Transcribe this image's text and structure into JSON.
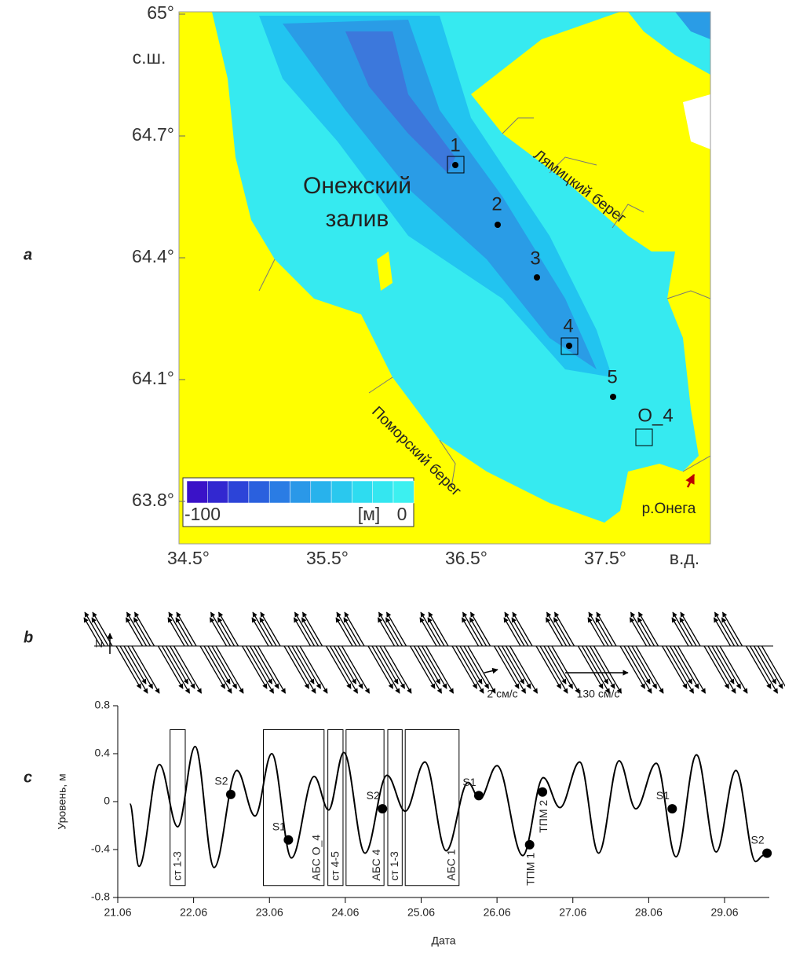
{
  "panel_labels": [
    "a",
    "b",
    "c"
  ],
  "map": {
    "lat_ticks": [
      "65°",
      "64.7°",
      "64.4°",
      "64.1°",
      "63.8°"
    ],
    "lat_unit": "с.ш.",
    "lon_ticks": [
      "34.5°",
      "35.5°",
      "36.5°",
      "37.5°"
    ],
    "lon_unit": "в.д.",
    "gulf_name": [
      "Онежский",
      "залив"
    ],
    "coasts": [
      "Лямицкий берег",
      "Поморский берег"
    ],
    "river": "р.Онега",
    "stations": [
      "1",
      "2",
      "3",
      "4",
      "5",
      "О_4"
    ],
    "colorbar": {
      "min_label": "-100",
      "unit": "[м]",
      "max_label": "0"
    }
  },
  "vectors": {
    "north": "N",
    "scales": [
      "2 см/с",
      "130 см/с"
    ]
  },
  "chart_data": {
    "type": "line",
    "x_label": "Дата",
    "y_label": "Уровень, м",
    "color": "#000000",
    "x": [
      21.16,
      21.28,
      21.55,
      21.79,
      22.02,
      22.27,
      22.57,
      22.81,
      23.03,
      23.29,
      23.59,
      23.78,
      23.98,
      24.26,
      24.55,
      24.79,
      25.05,
      25.33,
      25.62,
      25.77,
      26.0,
      26.34,
      26.61,
      26.83,
      27.09,
      27.34,
      27.61,
      27.83,
      28.1,
      28.36,
      28.63,
      28.89,
      29.15,
      29.41,
      29.51
    ],
    "values": [
      -0.02,
      -0.54,
      0.31,
      -0.21,
      0.46,
      -0.55,
      0.26,
      -0.12,
      0.4,
      -0.47,
      0.21,
      -0.07,
      0.41,
      -0.43,
      0.22,
      -0.08,
      0.33,
      -0.41,
      0.16,
      0.02,
      0.3,
      -0.45,
      0.2,
      -0.05,
      0.33,
      -0.43,
      0.34,
      -0.06,
      0.32,
      -0.46,
      0.39,
      -0.42,
      0.26,
      -0.5,
      -0.45
    ],
    "xlim": [
      21,
      29.59
    ],
    "ylim": [
      -0.8,
      0.8
    ],
    "xticks": [
      {
        "value": 21,
        "label": "21.06"
      },
      {
        "value": 22,
        "label": "22.06"
      },
      {
        "value": 23,
        "label": "23.06"
      },
      {
        "value": 24,
        "label": "24.06"
      },
      {
        "value": 25,
        "label": "25.06"
      },
      {
        "value": 26,
        "label": "26.06"
      },
      {
        "value": 27,
        "label": "27.06"
      },
      {
        "value": 28,
        "label": "28.06"
      },
      {
        "value": 29,
        "label": "29.06"
      }
    ],
    "yticks": [
      0.8,
      0.4,
      0,
      -0.4,
      -0.8
    ],
    "markers": [
      {
        "label": "S2",
        "x": 22.49,
        "y": 0.06
      },
      {
        "label": "S1",
        "x": 23.25,
        "y": -0.32
      },
      {
        "label": "S2",
        "x": 24.49,
        "y": -0.06
      },
      {
        "label": "S1",
        "x": 25.76,
        "y": 0.05
      },
      {
        "label": "ТПМ 1",
        "x": 26.43,
        "y": -0.36
      },
      {
        "label": "ТПМ 2",
        "x": 26.6,
        "y": 0.08
      },
      {
        "label": "S1",
        "x": 28.31,
        "y": -0.06
      },
      {
        "label": "S2",
        "x": 29.56,
        "y": -0.43
      }
    ],
    "periods": [
      {
        "label": "ст 1-3",
        "start": 21.69,
        "end": 21.89,
        "range": [
          -0.7,
          0.6
        ]
      },
      {
        "label": "АБС О_4",
        "start": 22.92,
        "end": 23.72,
        "range": [
          -0.7,
          0.6
        ]
      },
      {
        "label": "ст 4-5",
        "start": 23.77,
        "end": 23.97,
        "range": [
          -0.7,
          0.6
        ]
      },
      {
        "label": "АБС 4",
        "start": 24.01,
        "end": 24.51,
        "range": [
          -0.7,
          0.6
        ]
      },
      {
        "label": "ст 1-3",
        "start": 24.56,
        "end": 24.75,
        "range": [
          -0.7,
          0.6
        ]
      },
      {
        "label": "АБС 1",
        "start": 24.79,
        "end": 25.5,
        "range": [
          -0.7,
          0.6
        ]
      }
    ]
  }
}
